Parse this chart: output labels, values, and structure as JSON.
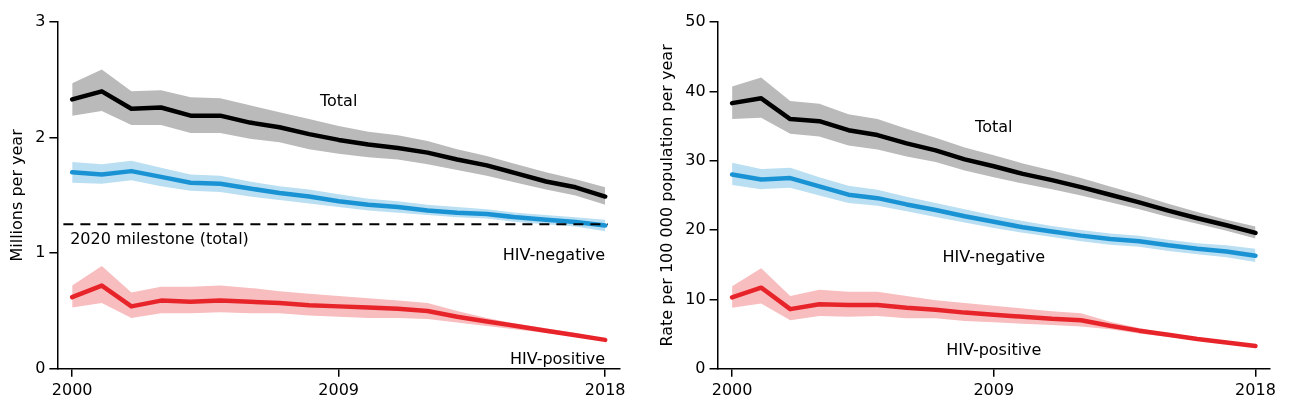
{
  "chart_data": [
    {
      "type": "line",
      "ylabel": "Millions per year",
      "x": [
        2000,
        2001,
        2002,
        2003,
        2004,
        2005,
        2006,
        2007,
        2008,
        2009,
        2010,
        2011,
        2012,
        2013,
        2014,
        2015,
        2016,
        2017,
        2018
      ],
      "xlim": [
        1999.5,
        2018.5
      ],
      "xticks": [
        2000,
        2009,
        2018
      ],
      "ylim": [
        0,
        3
      ],
      "yticks": [
        0,
        1,
        2,
        3
      ],
      "grid": false,
      "legend": false,
      "marker": "none",
      "line_style": "solid",
      "series": [
        {
          "name": "Total",
          "color": "#000000",
          "values": [
            2.33,
            2.4,
            2.25,
            2.26,
            2.19,
            2.19,
            2.13,
            2.09,
            2.03,
            1.98,
            1.94,
            1.91,
            1.87,
            1.81,
            1.76,
            1.69,
            1.62,
            1.57,
            1.49
          ],
          "lower": [
            2.19,
            2.23,
            2.11,
            2.11,
            2.04,
            2.04,
            1.99,
            1.96,
            1.9,
            1.86,
            1.83,
            1.81,
            1.77,
            1.72,
            1.67,
            1.61,
            1.55,
            1.5,
            1.42
          ],
          "upper": [
            2.47,
            2.59,
            2.4,
            2.41,
            2.35,
            2.34,
            2.28,
            2.22,
            2.16,
            2.1,
            2.05,
            2.02,
            1.97,
            1.9,
            1.84,
            1.77,
            1.7,
            1.64,
            1.57
          ]
        },
        {
          "name": "HIV-negative",
          "color": "#1a93d4",
          "values": [
            1.7,
            1.68,
            1.71,
            1.66,
            1.61,
            1.6,
            1.56,
            1.52,
            1.49,
            1.45,
            1.42,
            1.4,
            1.37,
            1.35,
            1.34,
            1.31,
            1.29,
            1.27,
            1.24
          ],
          "lower": [
            1.61,
            1.6,
            1.63,
            1.58,
            1.54,
            1.53,
            1.49,
            1.46,
            1.43,
            1.4,
            1.37,
            1.35,
            1.33,
            1.31,
            1.3,
            1.27,
            1.25,
            1.23,
            1.19
          ],
          "upper": [
            1.79,
            1.77,
            1.8,
            1.74,
            1.68,
            1.67,
            1.62,
            1.58,
            1.55,
            1.51,
            1.47,
            1.45,
            1.42,
            1.4,
            1.38,
            1.35,
            1.33,
            1.31,
            1.29
          ]
        },
        {
          "name": "HIV-positive",
          "color": "#e8242b",
          "values": [
            0.62,
            0.72,
            0.54,
            0.59,
            0.58,
            0.59,
            0.58,
            0.57,
            0.55,
            0.54,
            0.53,
            0.52,
            0.5,
            0.45,
            0.41,
            0.37,
            0.33,
            0.29,
            0.25
          ],
          "lower": [
            0.53,
            0.57,
            0.44,
            0.48,
            0.48,
            0.49,
            0.48,
            0.48,
            0.46,
            0.45,
            0.44,
            0.44,
            0.43,
            0.4,
            0.37,
            0.34,
            0.31,
            0.28,
            0.24
          ],
          "upper": [
            0.72,
            0.89,
            0.66,
            0.71,
            0.71,
            0.72,
            0.7,
            0.67,
            0.65,
            0.63,
            0.61,
            0.59,
            0.57,
            0.5,
            0.44,
            0.39,
            0.35,
            0.31,
            0.26
          ]
        }
      ],
      "ref_lines": [
        {
          "axis": "y",
          "value": 1.25,
          "label": "2020 milestone (total)",
          "color": "#000000",
          "line_style": "dashed"
        }
      ]
    },
    {
      "type": "line",
      "ylabel": "Rate per 100 000 population per year",
      "x": [
        2000,
        2001,
        2002,
        2003,
        2004,
        2005,
        2006,
        2007,
        2008,
        2009,
        2010,
        2011,
        2012,
        2013,
        2014,
        2015,
        2016,
        2017,
        2018
      ],
      "xlim": [
        1999.5,
        2018.5
      ],
      "xticks": [
        2000,
        2009,
        2018
      ],
      "ylim": [
        0,
        50
      ],
      "yticks": [
        0,
        10,
        20,
        30,
        40,
        50
      ],
      "grid": false,
      "legend": false,
      "marker": "none",
      "line_style": "solid",
      "series": [
        {
          "name": "Total",
          "color": "#000000",
          "values": [
            38.3,
            39.0,
            36.0,
            35.7,
            34.4,
            33.7,
            32.5,
            31.5,
            30.2,
            29.2,
            28.1,
            27.2,
            26.2,
            25.1,
            24.0,
            22.8,
            21.7,
            20.7,
            19.6
          ],
          "lower": [
            36.0,
            36.2,
            33.9,
            33.5,
            32.2,
            31.6,
            30.6,
            29.8,
            28.6,
            27.6,
            26.7,
            25.9,
            25.0,
            24.0,
            23.0,
            21.9,
            20.9,
            19.9,
            18.8
          ],
          "upper": [
            40.7,
            42.0,
            38.6,
            38.2,
            36.7,
            36.0,
            34.6,
            33.3,
            31.9,
            30.8,
            29.6,
            28.6,
            27.5,
            26.3,
            25.1,
            23.8,
            22.6,
            21.5,
            20.5
          ]
        },
        {
          "name": "HIV-negative",
          "color": "#1a93d4",
          "values": [
            28.0,
            27.3,
            27.5,
            26.3,
            25.1,
            24.6,
            23.7,
            22.9,
            22.0,
            21.2,
            20.4,
            19.8,
            19.2,
            18.7,
            18.4,
            17.8,
            17.3,
            16.9,
            16.3
          ],
          "lower": [
            26.5,
            25.9,
            26.1,
            25.0,
            23.9,
            23.5,
            22.7,
            21.9,
            21.1,
            20.3,
            19.6,
            19.0,
            18.4,
            17.9,
            17.6,
            17.0,
            16.5,
            16.1,
            15.4
          ],
          "upper": [
            29.7,
            28.8,
            29.0,
            27.6,
            26.4,
            25.8,
            24.8,
            23.9,
            23.0,
            22.1,
            21.3,
            20.6,
            20.0,
            19.5,
            19.2,
            18.6,
            18.1,
            17.8,
            17.3
          ]
        },
        {
          "name": "HIV-positive",
          "color": "#e8242b",
          "values": [
            10.3,
            11.7,
            8.6,
            9.3,
            9.2,
            9.2,
            8.8,
            8.5,
            8.1,
            7.8,
            7.5,
            7.2,
            7.0,
            6.2,
            5.5,
            4.9,
            4.3,
            3.8,
            3.3
          ],
          "lower": [
            8.8,
            9.4,
            7.0,
            7.6,
            7.5,
            7.6,
            7.3,
            7.3,
            6.9,
            6.7,
            6.5,
            6.3,
            6.1,
            5.7,
            5.1,
            4.6,
            4.1,
            3.6,
            3.1
          ],
          "upper": [
            11.9,
            14.5,
            10.5,
            11.4,
            11.1,
            11.1,
            10.5,
            9.9,
            9.5,
            9.1,
            8.7,
            8.3,
            8.0,
            6.8,
            5.9,
            5.1,
            4.5,
            3.9,
            3.4
          ]
        }
      ]
    }
  ]
}
